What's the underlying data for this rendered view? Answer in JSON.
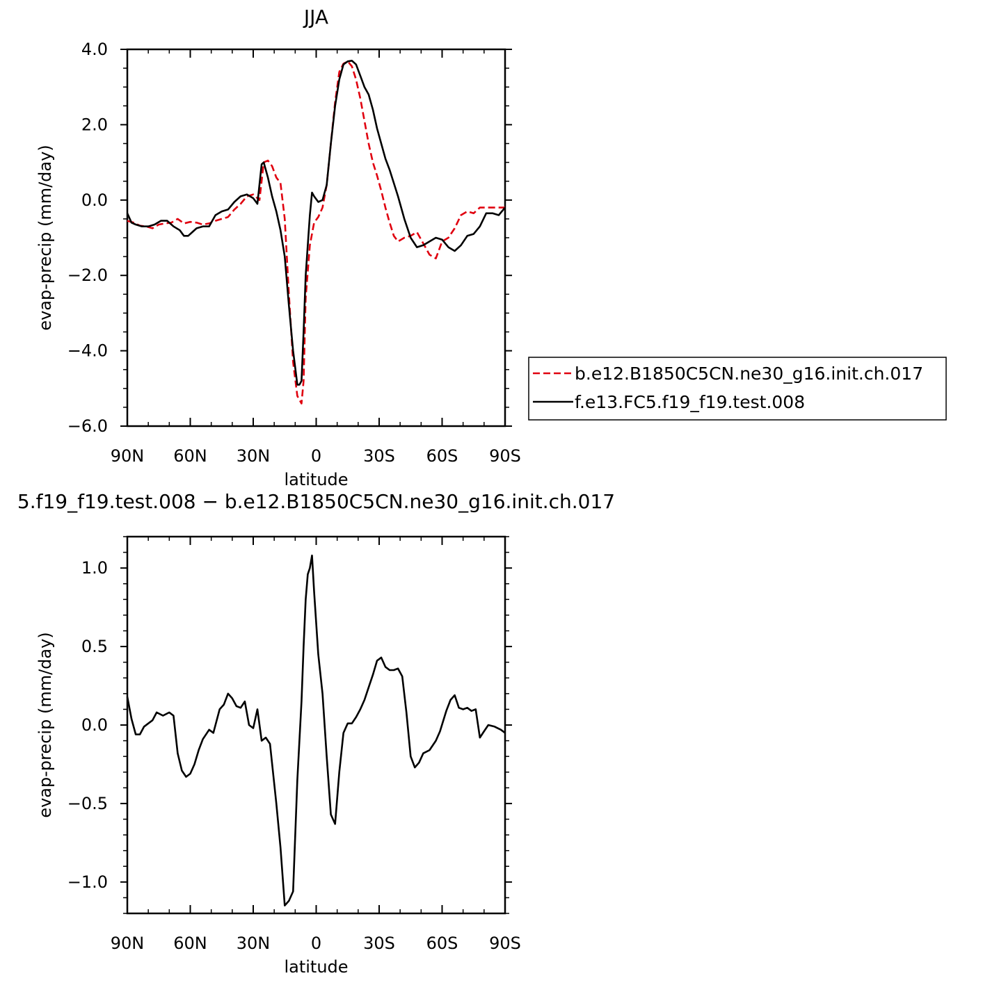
{
  "chart_data": [
    {
      "type": "line",
      "title": "JJA",
      "xlabel": "latitude",
      "ylabel": "evap-precip (mm/day)",
      "xlim": [
        -90,
        90
      ],
      "ylim": [
        -6,
        4
      ],
      "x_ticks": [
        -90,
        -60,
        -30,
        0,
        30,
        60,
        90
      ],
      "x_tick_labels": [
        "90N",
        "60N",
        "30N",
        "0",
        "30S",
        "60S",
        "90S"
      ],
      "y_ticks": [
        -6,
        -4,
        -2,
        0,
        2,
        4
      ],
      "y_tick_labels": [
        "−6.0",
        "−4.0",
        "−2.0",
        "0.0",
        "2.0",
        "4.0"
      ],
      "legend_position": "right",
      "series": [
        {
          "name": "b.e12.B1850C5CN.ne30_g16.init.ch.017",
          "color": "#e0000f",
          "dash": "dashed",
          "x": [
            -90,
            -87,
            -84,
            -81,
            -78,
            -75,
            -72,
            -69,
            -66,
            -63,
            -60,
            -57,
            -54,
            -51,
            -48,
            -45,
            -42,
            -39,
            -36,
            -33,
            -30,
            -27,
            -25,
            -23,
            -21,
            -19,
            -17,
            -15,
            -13,
            -11,
            -9,
            -7,
            -6,
            -5,
            -3,
            -1,
            1,
            3,
            5,
            7,
            9,
            11,
            13,
            15,
            17,
            19,
            21,
            23,
            25,
            27,
            29,
            31,
            33,
            35,
            37,
            39,
            42,
            45,
            48,
            51,
            54,
            57,
            60,
            63,
            66,
            69,
            72,
            75,
            78,
            81,
            84,
            87,
            90
          ],
          "values": [
            -0.55,
            -0.6,
            -0.68,
            -0.7,
            -0.75,
            -0.65,
            -0.62,
            -0.6,
            -0.5,
            -0.62,
            -0.58,
            -0.6,
            -0.65,
            -0.62,
            -0.55,
            -0.5,
            -0.45,
            -0.25,
            -0.1,
            0.1,
            0.15,
            0.0,
            1.0,
            1.05,
            0.9,
            0.6,
            0.45,
            -0.5,
            -2.5,
            -4.3,
            -5.2,
            -5.4,
            -4.8,
            -2.6,
            -1.2,
            -0.6,
            -0.45,
            -0.2,
            0.4,
            1.5,
            2.6,
            3.4,
            3.62,
            3.68,
            3.55,
            3.2,
            2.7,
            2.1,
            1.5,
            1.0,
            0.65,
            0.25,
            -0.2,
            -0.6,
            -0.95,
            -1.1,
            -1.0,
            -0.95,
            -0.85,
            -1.15,
            -1.45,
            -1.55,
            -1.1,
            -1.0,
            -0.75,
            -0.4,
            -0.3,
            -0.35,
            -0.2,
            -0.2,
            -0.2,
            -0.2,
            -0.2
          ]
        },
        {
          "name": "f.e13.FC5.f19_f19.test.008",
          "color": "#000000",
          "dash": "solid",
          "x": [
            -90,
            -88,
            -86,
            -83,
            -80,
            -77,
            -74,
            -71,
            -68,
            -65,
            -63,
            -61,
            -59,
            -57,
            -54,
            -51,
            -48,
            -45,
            -42,
            -39,
            -36,
            -33,
            -30,
            -28,
            -26,
            -25,
            -23,
            -21,
            -19,
            -17,
            -15,
            -13,
            -11,
            -9,
            -8,
            -7,
            -6,
            -5,
            -3,
            -2,
            -1,
            1,
            3,
            5,
            7,
            9,
            11,
            13,
            15,
            17,
            19,
            21,
            23,
            25,
            27,
            29,
            31,
            33,
            35,
            37,
            39,
            42,
            45,
            48,
            51,
            54,
            57,
            60,
            63,
            66,
            69,
            72,
            75,
            78,
            81,
            84,
            87,
            90
          ],
          "values": [
            -0.35,
            -0.6,
            -0.65,
            -0.7,
            -0.7,
            -0.65,
            -0.55,
            -0.55,
            -0.7,
            -0.8,
            -0.95,
            -0.95,
            -0.85,
            -0.75,
            -0.7,
            -0.7,
            -0.4,
            -0.3,
            -0.25,
            -0.05,
            0.1,
            0.15,
            0.05,
            -0.1,
            0.95,
            1.0,
            0.6,
            0.1,
            -0.3,
            -0.8,
            -1.5,
            -2.8,
            -4.0,
            -4.9,
            -4.9,
            -4.8,
            -3.5,
            -2.0,
            -0.4,
            0.2,
            0.1,
            -0.05,
            0.0,
            0.4,
            1.5,
            2.5,
            3.2,
            3.6,
            3.68,
            3.7,
            3.6,
            3.3,
            3.0,
            2.8,
            2.4,
            1.9,
            1.5,
            1.1,
            0.8,
            0.45,
            0.1,
            -0.5,
            -1.0,
            -1.25,
            -1.2,
            -1.1,
            -1.0,
            -1.05,
            -1.25,
            -1.35,
            -1.2,
            -0.95,
            -0.9,
            -0.7,
            -0.35,
            -0.35,
            -0.4,
            -0.2
          ]
        }
      ]
    },
    {
      "type": "line",
      "title": "5.f19_f19.test.008 − b.e12.B1850C5CN.ne30_g16.init.ch.017",
      "xlabel": "latitude",
      "ylabel": "evap-precip (mm/day)",
      "xlim": [
        -90,
        90
      ],
      "ylim": [
        -1.2,
        1.2
      ],
      "x_ticks": [
        -90,
        -60,
        -30,
        0,
        30,
        60,
        90
      ],
      "x_tick_labels": [
        "90N",
        "60N",
        "30N",
        "0",
        "30S",
        "60S",
        "90S"
      ],
      "y_ticks": [
        -1.0,
        -0.5,
        0.0,
        0.5,
        1.0
      ],
      "y_tick_labels": [
        "−1.0",
        "−0.5",
        "0.0",
        "0.5",
        "1.0"
      ],
      "series": [
        {
          "color": "#000000",
          "dash": "solid",
          "x": [
            -90,
            -88,
            -86,
            -84,
            -82,
            -80,
            -78,
            -76,
            -73,
            -70,
            -68,
            -66,
            -64,
            -62,
            -60,
            -58,
            -56,
            -54,
            -51,
            -49,
            -46,
            -44,
            -42,
            -40,
            -38,
            -36,
            -34,
            -32,
            -30,
            -28,
            -26,
            -24,
            -22,
            -19,
            -17,
            -15,
            -13,
            -11,
            -9,
            -7,
            -6,
            -5,
            -4,
            -3,
            -2,
            -1,
            1,
            3,
            5,
            7,
            9,
            11,
            13,
            15,
            17,
            19,
            21,
            23,
            25,
            27,
            29,
            31,
            33,
            35,
            37,
            39,
            41,
            43,
            45,
            47,
            49,
            51,
            54,
            57,
            59,
            62,
            64,
            66,
            68,
            70,
            72,
            74,
            76,
            78,
            80,
            82,
            85,
            88,
            90
          ],
          "values": [
            0.18,
            0.04,
            -0.06,
            -0.06,
            -0.01,
            0.01,
            0.03,
            0.08,
            0.06,
            0.08,
            0.06,
            -0.18,
            -0.29,
            -0.33,
            -0.31,
            -0.25,
            -0.16,
            -0.09,
            -0.03,
            -0.05,
            0.1,
            0.13,
            0.2,
            0.17,
            0.12,
            0.11,
            0.15,
            0.0,
            -0.02,
            0.1,
            -0.1,
            -0.08,
            -0.12,
            -0.5,
            -0.78,
            -1.15,
            -1.12,
            -1.06,
            -0.35,
            0.15,
            0.5,
            0.8,
            0.96,
            1.0,
            1.08,
            0.85,
            0.45,
            0.2,
            -0.2,
            -0.57,
            -0.63,
            -0.3,
            -0.05,
            0.01,
            0.01,
            0.05,
            0.1,
            0.16,
            0.24,
            0.32,
            0.41,
            0.43,
            0.37,
            0.35,
            0.35,
            0.36,
            0.31,
            0.08,
            -0.2,
            -0.27,
            -0.24,
            -0.18,
            -0.16,
            -0.1,
            -0.04,
            0.09,
            0.16,
            0.19,
            0.11,
            0.1,
            0.11,
            0.09,
            0.1,
            -0.08,
            -0.04,
            0.0,
            -0.01,
            -0.03,
            -0.05
          ]
        }
      ]
    }
  ]
}
